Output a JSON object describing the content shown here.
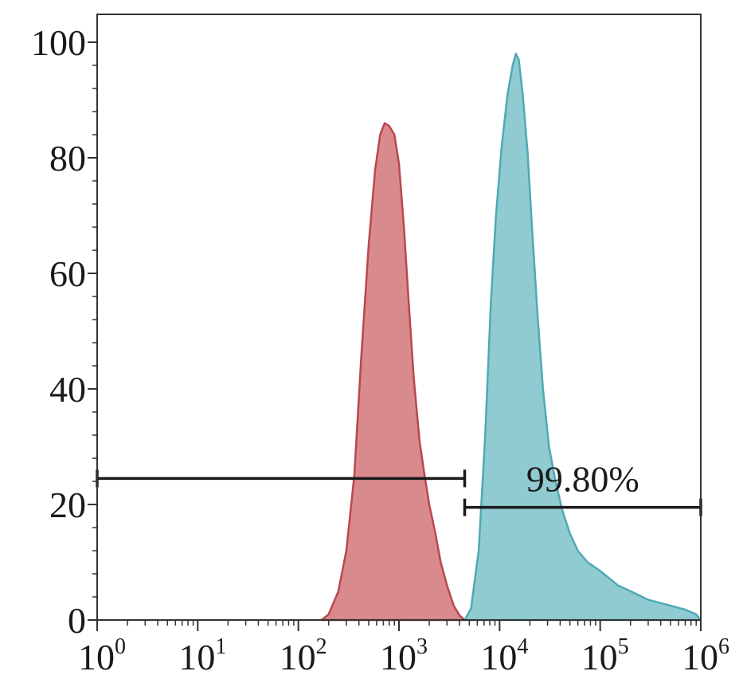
{
  "chart_data": {
    "type": "area",
    "title": "",
    "xlabel": "",
    "ylabel": "",
    "x_scale": "log",
    "x_range": [
      1,
      1000000
    ],
    "ylim": [
      0,
      100
    ],
    "y_ticks": [
      {
        "value": 0,
        "label": "0"
      },
      {
        "value": 20,
        "label": "20"
      },
      {
        "value": 40,
        "label": "40"
      },
      {
        "value": 60,
        "label": "60"
      },
      {
        "value": 80,
        "label": "80"
      },
      {
        "value": 100,
        "label": "100"
      }
    ],
    "x_ticks": [
      {
        "value": 1,
        "base": "10",
        "exp": "0"
      },
      {
        "value": 10,
        "base": "10",
        "exp": "1"
      },
      {
        "value": 100,
        "base": "10",
        "exp": "2"
      },
      {
        "value": 1000,
        "base": "10",
        "exp": "3"
      },
      {
        "value": 10000,
        "base": "10",
        "exp": "4"
      },
      {
        "value": 100000,
        "base": "10",
        "exp": "5"
      },
      {
        "value": 1000000,
        "base": "10",
        "exp": "6"
      }
    ],
    "grid": false,
    "series": [
      {
        "color": "#d98a8d",
        "stroke": "#b8484e",
        "points": [
          [
            170,
            0
          ],
          [
            200,
            1
          ],
          [
            250,
            5
          ],
          [
            300,
            12
          ],
          [
            360,
            25
          ],
          [
            420,
            45
          ],
          [
            500,
            65
          ],
          [
            580,
            78
          ],
          [
            650,
            84
          ],
          [
            720,
            86
          ],
          [
            800,
            85.5
          ],
          [
            900,
            84
          ],
          [
            1000,
            79
          ],
          [
            1120,
            68
          ],
          [
            1250,
            55
          ],
          [
            1400,
            42
          ],
          [
            1600,
            31
          ],
          [
            1800,
            25
          ],
          [
            2000,
            20
          ],
          [
            2300,
            15
          ],
          [
            2600,
            10
          ],
          [
            3000,
            6
          ],
          [
            3500,
            2.5
          ],
          [
            4000,
            0.8
          ],
          [
            4500,
            0
          ]
        ]
      },
      {
        "color": "#8fcbd1",
        "stroke": "#4fa9b5",
        "points": [
          [
            4500,
            0
          ],
          [
            5200,
            2
          ],
          [
            6200,
            12
          ],
          [
            7200,
            32
          ],
          [
            8200,
            55
          ],
          [
            9200,
            70
          ],
          [
            10500,
            82
          ],
          [
            12000,
            91
          ],
          [
            13500,
            96
          ],
          [
            14500,
            98
          ],
          [
            15500,
            97
          ],
          [
            17000,
            91
          ],
          [
            19000,
            81
          ],
          [
            21000,
            68
          ],
          [
            24000,
            52
          ],
          [
            27000,
            40
          ],
          [
            31000,
            30
          ],
          [
            36000,
            24
          ],
          [
            42000,
            19
          ],
          [
            50000,
            15
          ],
          [
            60000,
            12
          ],
          [
            75000,
            10
          ],
          [
            100000,
            8.5
          ],
          [
            150000,
            6
          ],
          [
            200000,
            5
          ],
          [
            300000,
            3.5
          ],
          [
            500000,
            2.5
          ],
          [
            700000,
            1.8
          ],
          [
            900000,
            1
          ],
          [
            1000000,
            0
          ]
        ]
      }
    ],
    "gates": [
      {
        "x_start": 1,
        "x_end": 4500,
        "y": 24.5,
        "label": ""
      },
      {
        "x_start": 4500,
        "x_end": 1000000,
        "y": 19.5,
        "label": "99.80%"
      }
    ]
  }
}
